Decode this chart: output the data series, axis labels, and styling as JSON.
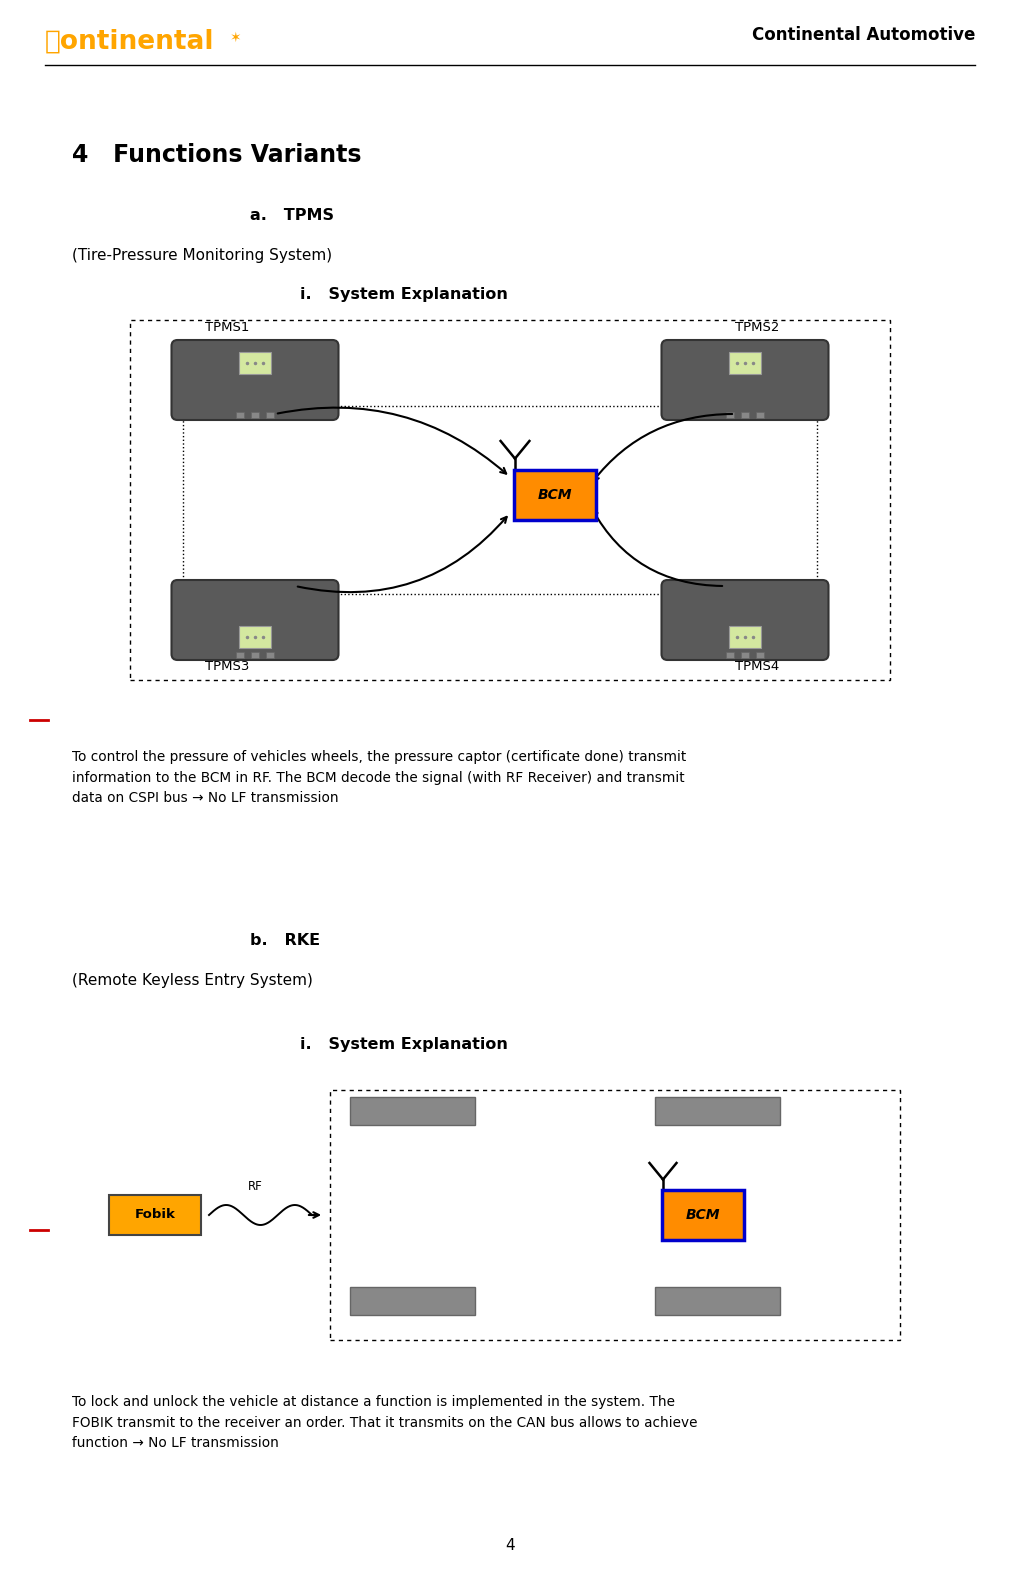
{
  "header_text": "Continental Automotive",
  "title": "4   Functions Variants",
  "section_a_title": "a.   TPMS",
  "section_a_subtitle": "(Tire-Pressure Monitoring System)",
  "section_a_sub": "i.   System Explanation",
  "section_a_desc": "To control the pressure of vehicles wheels, the pressure captor (certificate done) transmit\ninformation to the BCM in RF. The BCM decode the signal (with RF Receiver) and transmit\ndata on CSPI bus → No LF transmission",
  "section_b_title": "b.   RKE",
  "section_b_subtitle": "(Remote Keyless Entry System)",
  "section_b_sub": "i.   System Explanation",
  "section_b_desc": "To lock and unlock the vehicle at distance a function is implemented in the system. The\nFOBIK transmit to the receiver an order. That it transmits on the CAN bus allows to achieve\nfunction → No LF transmission",
  "tpms_labels": [
    "TPMS1",
    "TPMS2",
    "TPMS3",
    "TPMS4"
  ],
  "bcm_color": "#FF8C00",
  "bcm_border": "#0000CC",
  "tpms_body_color": "#5a5a5a",
  "tpms_sensor_color": "#d4e8a0",
  "orange_color": "#FFA500",
  "fobik_color": "#FFA500",
  "page_number": "4",
  "bg_color": "#ffffff",
  "margin_line_color": "#cc0000"
}
